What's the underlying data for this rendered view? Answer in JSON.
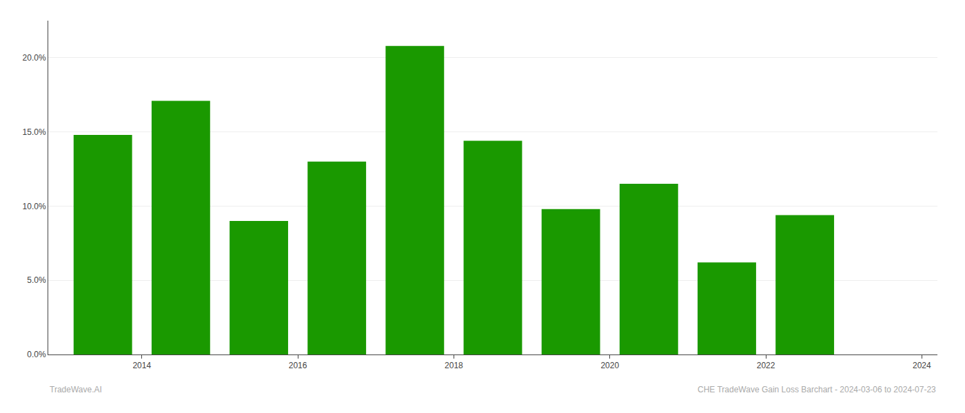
{
  "chart_data": {
    "type": "bar",
    "x": [
      2013.5,
      2014.5,
      2015.5,
      2016.5,
      2017.5,
      2018.5,
      2019.5,
      2020.5,
      2021.5,
      2022.5
    ],
    "values": [
      0.148,
      0.171,
      0.09,
      0.13,
      0.208,
      0.144,
      0.098,
      0.115,
      0.062,
      0.094
    ],
    "color": "#1a9900",
    "xlim": [
      2012.8,
      2024.2
    ],
    "xticks": [
      2014,
      2016,
      2018,
      2020,
      2022,
      2024
    ],
    "ylim": [
      0,
      0.225
    ],
    "yticks": [
      {
        "value": 0.0,
        "label": "0.0%"
      },
      {
        "value": 0.05,
        "label": "5.0%"
      },
      {
        "value": 0.1,
        "label": "10.0%"
      },
      {
        "value": 0.15,
        "label": "15.0%"
      },
      {
        "value": 0.2,
        "label": "20.0%"
      }
    ],
    "grid": true,
    "annotations": [
      "TradeWave.AI",
      "CHE TradeWave Gain Loss Barchart - 2024-03-06 to 2024-07-23"
    ]
  }
}
